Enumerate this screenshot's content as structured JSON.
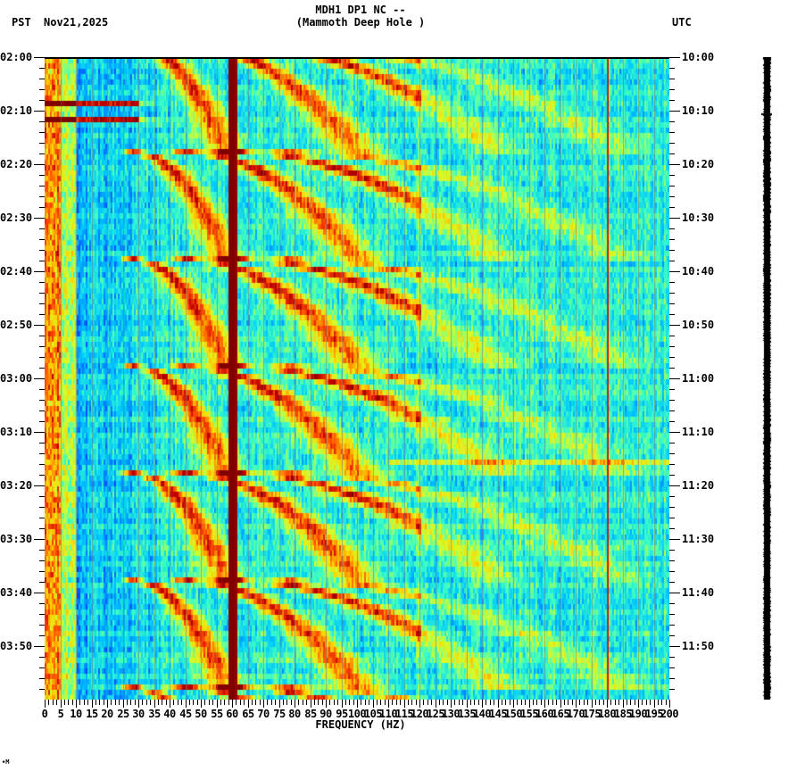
{
  "header": {
    "title_line1": "MDH1 DP1 NC --",
    "title_line2": "(Mammoth Deep Hole )",
    "left_timezone": "PST",
    "date": "Nov21,2025",
    "right_timezone": "UTC"
  },
  "footer": {
    "mark": "∙M"
  },
  "chart_data": {
    "type": "heatmap",
    "title": "MDH1 DP1 NC -- (Mammoth Deep Hole )",
    "subtitle": "Nov21,2025",
    "xlabel": "FREQUENCY (HZ)",
    "ylabel_left": "PST",
    "ylabel_right": "UTC",
    "xlim": [
      0,
      200
    ],
    "x_ticks": [
      0,
      5,
      10,
      15,
      20,
      25,
      30,
      35,
      40,
      45,
      50,
      55,
      60,
      65,
      70,
      75,
      80,
      85,
      90,
      95,
      100,
      105,
      110,
      115,
      120,
      125,
      130,
      135,
      140,
      145,
      150,
      155,
      160,
      165,
      170,
      175,
      180,
      185,
      190,
      195,
      200
    ],
    "y_ticks_left": [
      "02:00",
      "02:10",
      "02:20",
      "02:30",
      "02:40",
      "02:50",
      "03:00",
      "03:10",
      "03:20",
      "03:30",
      "03:40",
      "03:50"
    ],
    "y_ticks_right": [
      "10:00",
      "10:10",
      "10:20",
      "10:30",
      "10:40",
      "10:50",
      "11:00",
      "11:10",
      "11:20",
      "11:30",
      "11:40",
      "11:50"
    ],
    "time_range_minutes": 120,
    "minor_tick_minutes": 2,
    "colormap": [
      "#00008f",
      "#0050ff",
      "#00c8ff",
      "#40ffc0",
      "#d0ff30",
      "#ffd000",
      "#ff5000",
      "#c00000",
      "#800000"
    ],
    "features": {
      "persistent_lines_hz": [
        60,
        180
      ],
      "strong_low_freq_band_hz": [
        0,
        5
      ],
      "broadband_events_minutes": [
        [
          8.0,
          8.8
        ],
        [
          10.2,
          11.5
        ]
      ],
      "horizontal_event_minutes": [
        75.0
      ],
      "harmonic_sweeps": {
        "period_minutes": 20,
        "first_start_minute": -3,
        "harmonics": [
          {
            "start_hz": 28,
            "end_hz": 58
          },
          {
            "start_hz": 45,
            "end_hz": 100
          },
          {
            "start_hz": 60,
            "end_hz": 145
          },
          {
            "start_hz": 78,
            "end_hz": 185
          }
        ]
      }
    }
  },
  "seismogram": {
    "color": "#000000",
    "spike_minute": 10.5
  }
}
